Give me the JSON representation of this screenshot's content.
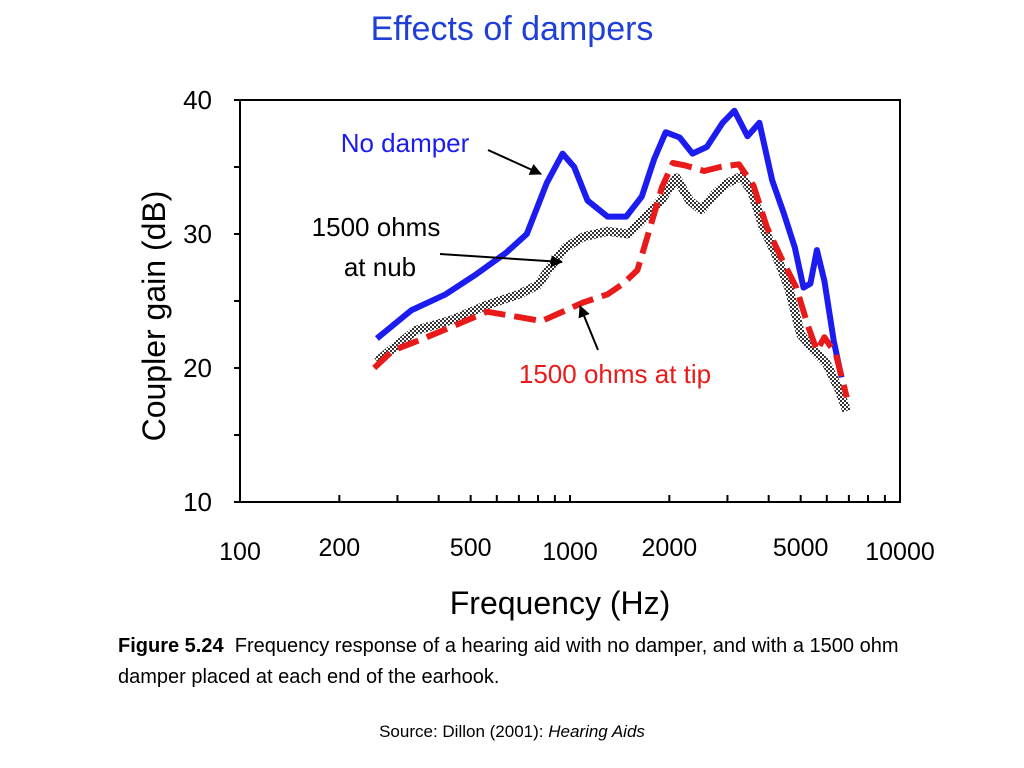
{
  "slide": {
    "title": "Effects of dampers"
  },
  "caption": {
    "label": "Figure 5.24",
    "text": "Frequency response of a hearing aid with no damper, and with a 1500 ohm damper placed at each end of the earhook."
  },
  "source": {
    "prefix": "Source:  Dillon (2001): ",
    "book": "Hearing Aids"
  },
  "chart_data": {
    "type": "line",
    "title": "",
    "xlabel": "Frequency (Hz)",
    "ylabel": "Coupler gain (dB)",
    "xscale": "log",
    "xlim": [
      100,
      10000
    ],
    "ylim": [
      10,
      40
    ],
    "xticks": [
      {
        "label": "100",
        "value": 100
      },
      {
        "label": "200",
        "value": 200
      },
      {
        "label": "500",
        "value": 500
      },
      {
        "label": "1000",
        "value": 1000
      },
      {
        "label": "2000",
        "value": 2000
      },
      {
        "label": "5000",
        "value": 5000
      },
      {
        "label": "10000",
        "value": 10000
      }
    ],
    "yticks": [
      10,
      20,
      30,
      40
    ],
    "grid": false,
    "legend": "none (inline annotations)",
    "series": [
      {
        "name": "No damper",
        "color": "#1c1cf0",
        "style": "solid",
        "points": [
          [
            260,
            22.2
          ],
          [
            330,
            24.3
          ],
          [
            420,
            25.5
          ],
          [
            520,
            27
          ],
          [
            640,
            28.6
          ],
          [
            740,
            30
          ],
          [
            850,
            33.8
          ],
          [
            950,
            36
          ],
          [
            1030,
            35
          ],
          [
            1130,
            32.5
          ],
          [
            1300,
            31.3
          ],
          [
            1480,
            31.3
          ],
          [
            1650,
            32.8
          ],
          [
            1800,
            35.6
          ],
          [
            1950,
            37.6
          ],
          [
            2150,
            37.2
          ],
          [
            2350,
            36
          ],
          [
            2600,
            36.5
          ],
          [
            2900,
            38.3
          ],
          [
            3150,
            39.2
          ],
          [
            3450,
            37.3
          ],
          [
            3750,
            38.3
          ],
          [
            4100,
            34
          ],
          [
            4450,
            31.5
          ],
          [
            4800,
            29
          ],
          [
            5100,
            26
          ],
          [
            5350,
            26.3
          ],
          [
            5600,
            28.8
          ],
          [
            5900,
            26.5
          ],
          [
            6300,
            22
          ],
          [
            6650,
            19.3
          ]
        ]
      },
      {
        "name": "1500 ohms at nub",
        "color": "#666666",
        "style": "hatched",
        "points": [
          [
            260,
            20.5
          ],
          [
            340,
            22.8
          ],
          [
            440,
            23.6
          ],
          [
            560,
            24.7
          ],
          [
            700,
            25.5
          ],
          [
            800,
            26.2
          ],
          [
            870,
            27.5
          ],
          [
            970,
            29
          ],
          [
            1100,
            29.8
          ],
          [
            1300,
            30.2
          ],
          [
            1500,
            30
          ],
          [
            1700,
            31.3
          ],
          [
            1900,
            32.6
          ],
          [
            2100,
            34.2
          ],
          [
            2300,
            32.5
          ],
          [
            2500,
            31.8
          ],
          [
            2750,
            33
          ],
          [
            3000,
            33.8
          ],
          [
            3300,
            34.3
          ],
          [
            3550,
            33.2
          ],
          [
            3850,
            30.5
          ],
          [
            4200,
            28.5
          ],
          [
            4600,
            26
          ],
          [
            5000,
            22.5
          ],
          [
            5500,
            21.3
          ],
          [
            6000,
            20.3
          ],
          [
            6500,
            18.5
          ],
          [
            6900,
            16.8
          ]
        ]
      },
      {
        "name": "1500 ohms at tip",
        "color": "#e81a1a",
        "style": "dashed",
        "points": [
          [
            255,
            20
          ],
          [
            290,
            21.3
          ],
          [
            360,
            22.2
          ],
          [
            450,
            23.2
          ],
          [
            560,
            24.2
          ],
          [
            700,
            23.8
          ],
          [
            820,
            23.5
          ],
          [
            950,
            24.2
          ],
          [
            1100,
            24.9
          ],
          [
            1300,
            25.5
          ],
          [
            1450,
            26.3
          ],
          [
            1600,
            27.3
          ],
          [
            1750,
            30.5
          ],
          [
            1900,
            33.5
          ],
          [
            2050,
            35.3
          ],
          [
            2250,
            35.1
          ],
          [
            2550,
            34.7
          ],
          [
            2850,
            35
          ],
          [
            3250,
            35.2
          ],
          [
            3600,
            33.6
          ],
          [
            3950,
            30.5
          ],
          [
            4350,
            28.3
          ],
          [
            4850,
            26
          ],
          [
            5250,
            23.2
          ],
          [
            5600,
            21.3
          ],
          [
            5900,
            22.3
          ],
          [
            6400,
            21
          ],
          [
            6900,
            17.8
          ]
        ]
      }
    ],
    "annotations": [
      {
        "text": "No damper",
        "color": "#1c1cf0"
      },
      {
        "text": "1500 ohms",
        "text2": "at nub",
        "color": "#000000"
      },
      {
        "text": "1500 ohms at tip",
        "color": "#e81a1a"
      }
    ]
  }
}
